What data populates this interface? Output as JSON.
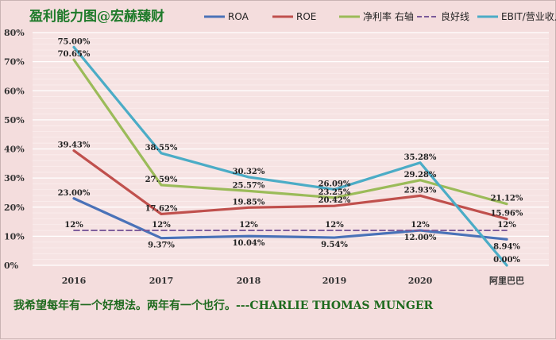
{
  "chart_data": {
    "type": "line",
    "title": "盈利能力图@宏赫臻财",
    "categories": [
      "2016",
      "2017",
      "2018",
      "2019",
      "2020",
      "阿里巴巴"
    ],
    "y_axis": {
      "min": 0,
      "max": 80,
      "step": 10,
      "tick_labels": [
        "0%",
        "10%",
        "20%",
        "30%",
        "40%",
        "50%",
        "60%",
        "70%",
        "80%"
      ]
    },
    "series": [
      {
        "name": "ROA",
        "color": "#4a72b8",
        "dashed": false,
        "values": [
          23.0,
          9.37,
          10.04,
          9.54,
          12.0,
          8.94
        ],
        "labels": [
          "23.00%",
          "9.37%",
          "10.04%",
          "9.54%",
          "12.00%",
          "8.94%"
        ]
      },
      {
        "name": "ROE",
        "color": "#c0504d",
        "dashed": false,
        "values": [
          39.43,
          17.62,
          19.85,
          20.42,
          23.93,
          15.96
        ],
        "labels": [
          "39.43%",
          "17.62%",
          "19.85%",
          "20.42%",
          "23.93%",
          "15.96%"
        ]
      },
      {
        "name": "净利率 右轴",
        "color": "#9bbb59",
        "dashed": false,
        "values": [
          70.65,
          27.59,
          25.57,
          23.25,
          29.28,
          21.12
        ],
        "labels": [
          "70.65%",
          "27.59%",
          "25.57%",
          "23.25%",
          "29.28%",
          "21.12%"
        ]
      },
      {
        "name": "良好线",
        "color": "#7a5a9a",
        "dashed": true,
        "values": [
          12,
          12,
          12,
          12,
          12,
          12
        ],
        "labels": [
          "12%",
          "12%",
          "12%",
          "12%",
          "12%",
          "12%"
        ]
      },
      {
        "name": "EBIT/营业收入",
        "color": "#4bacc6",
        "dashed": false,
        "values": [
          75.0,
          38.55,
          30.32,
          26.09,
          35.28,
          0.0
        ],
        "labels": [
          "75.00%",
          "38.55%",
          "30.32%",
          "26.09%",
          "35.28%",
          "0.00%"
        ]
      }
    ],
    "grid": true,
    "legend_position": "top"
  },
  "quote": "我希望每年有一个好想法。两年有一个也行。---CHARLIE THOMAS MUNGER"
}
